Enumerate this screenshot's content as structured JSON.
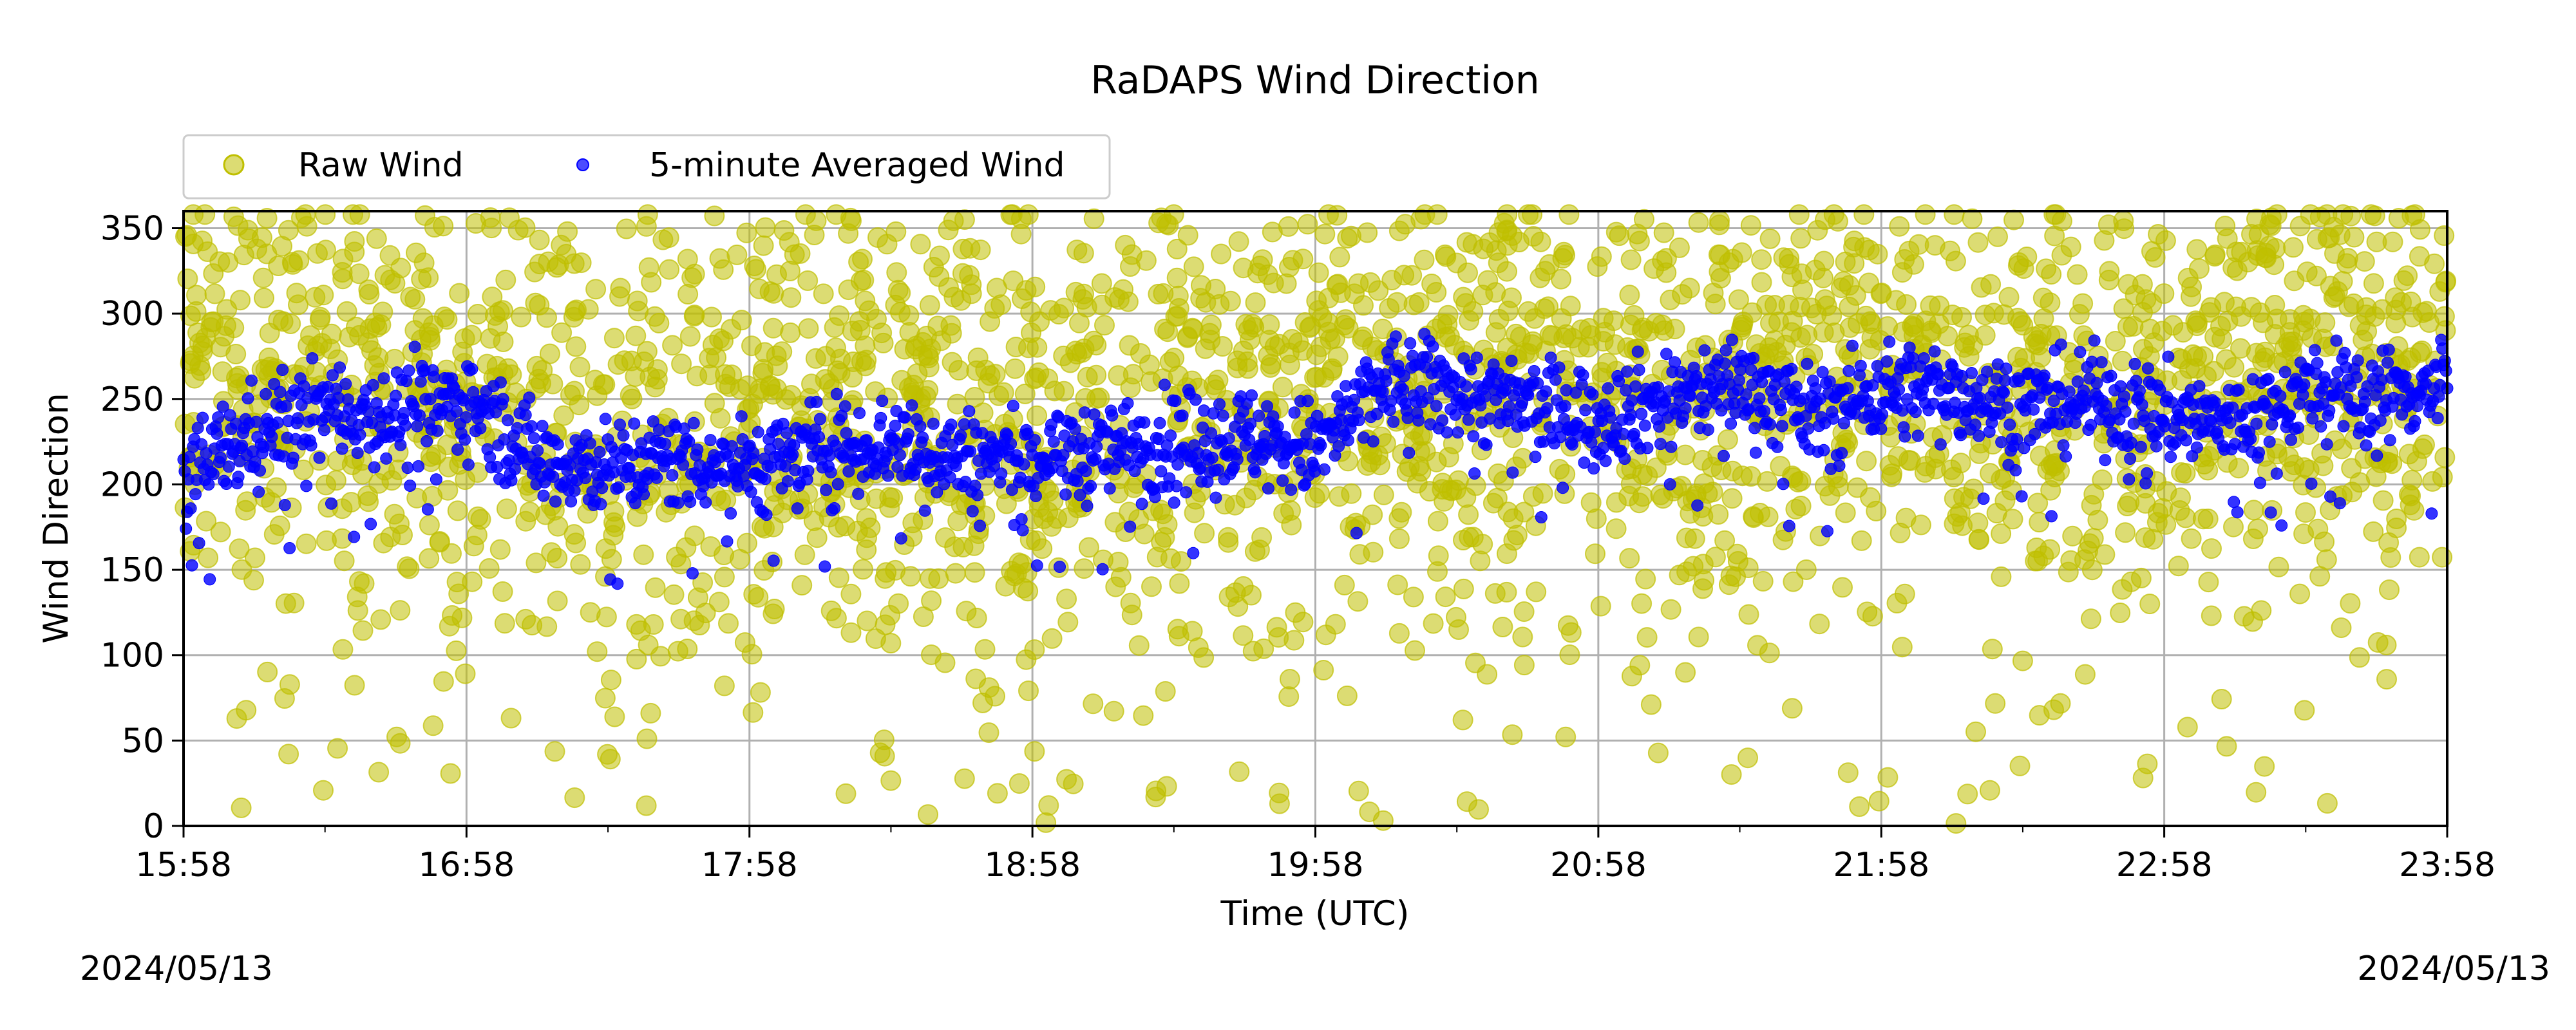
{
  "chart_data": {
    "type": "scatter",
    "title": "RaDAPS Wind Direction",
    "xlabel": "Time (UTC)",
    "ylabel": "Wind Direction",
    "xlim": [
      "15:58",
      "23:58"
    ],
    "ylim": [
      0,
      360
    ],
    "x_ticks": [
      "15:58",
      "16:58",
      "17:58",
      "18:58",
      "19:58",
      "20:58",
      "21:58",
      "22:58",
      "23:58"
    ],
    "y_ticks": [
      0,
      50,
      100,
      150,
      200,
      250,
      300,
      350
    ],
    "grid": true,
    "legend_position": "top-left",
    "colors": {
      "raw": "#bfbf00",
      "avg": "#0000ff"
    },
    "series": [
      {
        "name": "Raw Wind",
        "marker": "circle-large-translucent",
        "note_range": "values spread across full 0-360 range, densest between 150 and 350",
        "x": [
          "16:08",
          "16:28",
          "16:48",
          "17:08",
          "17:28",
          "17:48",
          "18:08",
          "18:28",
          "18:48",
          "19:08",
          "19:28",
          "19:48",
          "20:08",
          "20:28",
          "20:48",
          "21:08",
          "21:28",
          "21:48",
          "22:08",
          "22:28",
          "22:48",
          "23:08",
          "23:28",
          "23:48"
        ],
        "values": [
          260,
          240,
          250,
          230,
          210,
          200,
          215,
          205,
          210,
          215,
          220,
          215,
          250,
          240,
          245,
          240,
          235,
          250,
          245,
          240,
          235,
          250,
          245,
          250
        ]
      },
      {
        "name": "5-minute Averaged Wind",
        "marker": "circle-small",
        "x": [
          "15:58",
          "16:13",
          "16:28",
          "16:43",
          "16:58",
          "17:13",
          "17:28",
          "17:43",
          "17:58",
          "18:13",
          "18:28",
          "18:43",
          "18:58",
          "19:13",
          "19:28",
          "19:43",
          "19:58",
          "20:13",
          "20:28",
          "20:43",
          "20:58",
          "21:13",
          "21:28",
          "21:43",
          "21:58",
          "22:13",
          "22:28",
          "22:43",
          "22:58",
          "23:13",
          "23:28",
          "23:43",
          "23:58"
        ],
        "values": [
          205,
          230,
          245,
          240,
          250,
          215,
          210,
          215,
          210,
          220,
          225,
          215,
          215,
          220,
          225,
          228,
          220,
          260,
          255,
          245,
          240,
          250,
          260,
          240,
          255,
          255,
          245,
          250,
          240,
          235,
          255,
          250,
          260
        ]
      }
    ]
  },
  "dates": {
    "left": "2024/05/13",
    "right": "2024/05/13"
  }
}
